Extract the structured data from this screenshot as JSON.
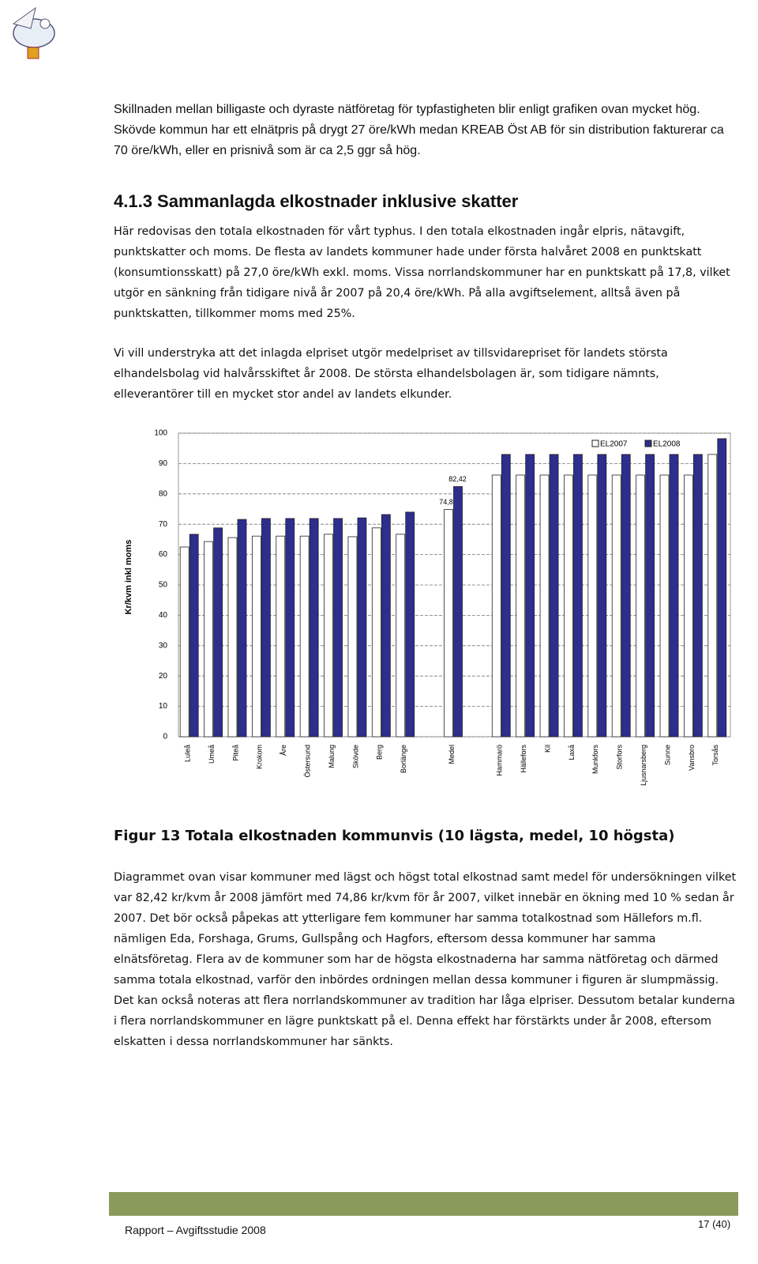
{
  "intro": "Skillnaden mellan billigaste och dyraste nätföretag för typfastigheten blir enligt grafiken ovan mycket hög. Skövde kommun har ett elnätpris på drygt 27 öre/kWh medan KREAB Öst AB för sin distribution fakturerar ca 70 öre/kWh, eller en prisnivå som är ca 2,5 ggr så hög.",
  "section": {
    "heading": "4.1.3 Sammanlagda elkostnader inklusive skatter",
    "paragraphs": [
      "Här redovisas den totala elkostnaden för vårt typhus. I den totala elkostnaden ingår elpris, nätavgift, punktskatter och moms. De flesta av landets kommuner hade under första halvåret 2008 en punktskatt (konsumtionsskatt) på 27,0 öre/kWh exkl. moms. Vissa norrlandskommuner har en punktskatt på 17,8, vilket utgör en sänkning från tidigare nivå år 2007 på 20,4 öre/kWh. På alla avgiftselement, alltså även på punktskatten, tillkommer moms med 25%.",
      "Vi vill understryka att det inlagda elpriset utgör medelpriset av tillsvidarepriset för landets största elhandelsbolag vid halvårsskiftet år 2008. De största elhandelsbolagen är, som tidigare nämnts, elleverantörer till en mycket stor andel av landets elkunder."
    ]
  },
  "chart_data": {
    "type": "bar",
    "y_label": "Kr/kvm inkl moms",
    "categories": [
      "Luleå",
      "Umeå",
      "Piteå",
      "Krokom",
      "Åre",
      "Östersund",
      "Malung",
      "Skövde",
      "Berg",
      "Borlänge",
      null,
      "Medel",
      null,
      "Hammarö",
      "Hällefors",
      "Kil",
      "Laxå",
      "Munkfors",
      "Storfors",
      "Ljusnarsberg",
      "Sunne",
      "Vansbro",
      "Torsås"
    ],
    "series": [
      {
        "name": "EL2007",
        "color": "#ffffff",
        "values": [
          62.5,
          64.3,
          65.6,
          66.1,
          66.1,
          66.1,
          66.7,
          65.9,
          68.8,
          66.7,
          null,
          74.86,
          null,
          86.2,
          86.2,
          86.2,
          86.2,
          86.2,
          86.2,
          86.2,
          86.2,
          86.2,
          93
        ],
        "value_labels": [
          null,
          null,
          null,
          null,
          null,
          null,
          null,
          null,
          null,
          null,
          null,
          "74,86",
          null,
          null,
          null,
          null,
          null,
          null,
          null,
          null,
          null,
          null,
          null
        ]
      },
      {
        "name": "EL2008",
        "color": "#2e2e8c",
        "values": [
          66.7,
          68.8,
          71.6,
          71.9,
          71.9,
          71.9,
          71.9,
          72.1,
          73.2,
          74,
          null,
          82.42,
          null,
          93,
          93,
          93,
          93,
          93,
          93,
          93,
          93,
          93,
          98.2
        ],
        "value_labels": [
          null,
          null,
          null,
          null,
          null,
          null,
          null,
          null,
          null,
          null,
          null,
          "82,42",
          null,
          null,
          null,
          null,
          null,
          null,
          null,
          null,
          null,
          null,
          null
        ]
      }
    ],
    "ylim": [
      0,
      100
    ],
    "yticks": [
      0,
      10,
      20,
      30,
      40,
      50,
      60,
      70,
      80,
      90,
      100
    ],
    "grid": true,
    "legend": "top-right"
  },
  "figure_caption": "Figur 13 Totala elkostnaden kommunvis (10 lägsta, medel, 10 högsta)",
  "body": "Diagrammet ovan visar kommuner med lägst och högst total elkostnad samt medel för undersökningen vilket var 82,42 kr/kvm år 2008 jämfört med 74,86 kr/kvm för år 2007, vilket innebär en ökning med 10 % sedan år 2007. Det bör också påpekas att ytterligare fem kommuner har samma totalkostnad som Hällefors m.fl. nämligen Eda, Forshaga, Grums, Gullspång och Hagfors, eftersom dessa kommuner har samma elnätsföretag. Flera av de kommuner som har de högsta elkostnaderna har samma nätföretag och därmed samma totala elkostnad, varför den inbördes ordningen mellan dessa kommuner i figuren är slumpmässig. Det kan också noteras att flera norrlandskommuner av tradition har låga elpriser. Dessutom betalar kunderna i flera norrlandskommuner en lägre punktskatt på el. Denna effekt har förstärkts under år 2008, eftersom elskatten i dessa norrlandskommuner har sänkts.",
  "footer": {
    "report": "Rapport – Avgiftsstudie 2008",
    "page": "17 (40)"
  }
}
